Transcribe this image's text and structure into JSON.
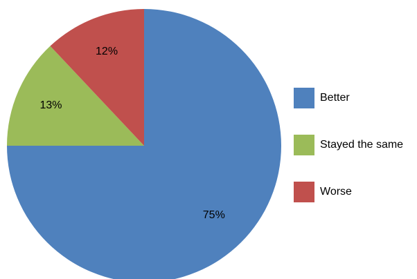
{
  "chart_data": {
    "type": "pie",
    "title": "",
    "categories": [
      "Better",
      "Stayed the same",
      "Worse"
    ],
    "values": [
      75,
      13,
      12
    ],
    "labels": [
      "75%",
      "13%",
      "12%"
    ],
    "colors": [
      "#4f81bd",
      "#9bbb59",
      "#c0504d"
    ],
    "legend": {
      "placement": "right",
      "entries": [
        "Better",
        "Stayed the same",
        "Worse"
      ]
    },
    "grid": false
  }
}
